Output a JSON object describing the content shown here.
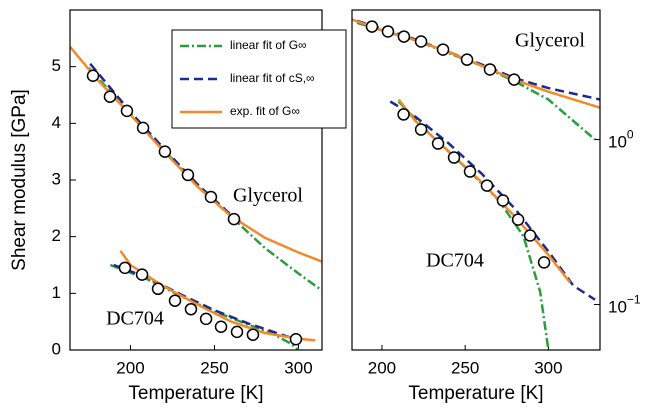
{
  "chart_data": [
    {
      "type": "line",
      "xlabel": "Temperature [K]",
      "ylabel": "Shear modulus [GPa]",
      "xlim": [
        164,
        314
      ],
      "xticks": [
        200,
        250,
        300
      ],
      "ylim": [
        0,
        6
      ],
      "yticks": [
        0,
        1,
        2,
        3,
        4,
        5
      ],
      "yaxis_side": "left",
      "annotations": [
        "Glycerol",
        "DC704"
      ],
      "series": [
        {
          "name": "linear fit of G∞",
          "color": "#2a9d3f",
          "style": "dashdot",
          "x": [
            175,
            200,
            220,
            240,
            260,
            280,
            300,
            314
          ],
          "values": [
            4.98,
            4.17,
            3.52,
            2.9,
            2.35,
            1.8,
            1.35,
            1.05
          ]
        },
        {
          "name": "linear fit of cS,∞",
          "color": "#1f2a8a",
          "style": "dashed",
          "x": [
            176,
            200,
            220,
            240,
            260,
            266
          ],
          "values": [
            5.05,
            4.2,
            3.55,
            2.92,
            2.38,
            2.25
          ]
        },
        {
          "name": "exp. fit of G∞",
          "color": "#f28a2b",
          "style": "solid",
          "x": [
            164,
            180,
            200,
            220,
            240,
            260,
            280,
            300,
            314
          ],
          "values": [
            5.35,
            4.78,
            4.15,
            3.5,
            2.88,
            2.36,
            1.98,
            1.72,
            1.56
          ]
        },
        {
          "color": "#2a9d3f",
          "style": "dashdot",
          "x": [
            188,
            210,
            230,
            250,
            270,
            285,
            295,
            300
          ],
          "values": [
            1.5,
            1.25,
            0.95,
            0.68,
            0.45,
            0.28,
            0.12,
            0.0
          ]
        },
        {
          "color": "#1f2a8a",
          "style": "dashed",
          "x": [
            190,
            210,
            230,
            250,
            270,
            290,
            300
          ],
          "values": [
            1.5,
            1.28,
            0.98,
            0.7,
            0.47,
            0.27,
            0.18
          ]
        },
        {
          "color": "#f28a2b",
          "style": "solid",
          "x": [
            194,
            200,
            220,
            240,
            260,
            280,
            300,
            310
          ],
          "values": [
            1.75,
            1.5,
            1.12,
            0.8,
            0.5,
            0.3,
            0.2,
            0.17
          ]
        },
        {
          "color": "#000000",
          "style": "markers",
          "x": [
            177.7,
            187.8,
            197.9,
            207.5,
            220.5,
            234.2,
            247.9,
            261.6
          ],
          "values": [
            4.84,
            4.47,
            4.22,
            3.92,
            3.5,
            3.09,
            2.7,
            2.31
          ]
        },
        {
          "color": "#000000",
          "style": "markers",
          "x": [
            196.7,
            206.9,
            216.4,
            226.5,
            236,
            245,
            253.9,
            263.4,
            272.9,
            298.5
          ],
          "values": [
            1.45,
            1.33,
            1.08,
            0.87,
            0.72,
            0.55,
            0.41,
            0.32,
            0.27,
            0.19
          ]
        }
      ]
    },
    {
      "type": "line",
      "xlabel": "Temperature [K]",
      "log_y": true,
      "xlim": [
        182,
        331
      ],
      "xticks": [
        200,
        250,
        300
      ],
      "ylim": [
        0.053,
        6.1
      ],
      "yticks": [
        {
          "value": 0.1,
          "label": "10^−1"
        },
        {
          "value": 1,
          "label": "10^0"
        }
      ],
      "yaxis_side": "right",
      "annotations": [
        "Glycerol",
        "DC704"
      ],
      "series": [
        {
          "color": "#2a9d3f",
          "style": "dashdot",
          "x": [
            185,
            220,
            260,
            280,
            300,
            328
          ],
          "values": [
            5.1,
            4.0,
            2.8,
            2.25,
            1.75,
            1.0
          ]
        },
        {
          "color": "#1f2a8a",
          "style": "dashed",
          "x": [
            185,
            220,
            260,
            280,
            300,
            331
          ],
          "values": [
            5.25,
            4.05,
            2.85,
            2.35,
            2.05,
            1.75
          ]
        },
        {
          "color": "#f28a2b",
          "style": "solid",
          "x": [
            182,
            200,
            220,
            240,
            260,
            280,
            300,
            331
          ],
          "values": [
            5.34,
            4.6,
            4.0,
            3.4,
            2.8,
            2.3,
            1.95,
            1.56
          ]
        },
        {
          "color": "#2a9d3f",
          "style": "dashdot",
          "x": [
            210,
            230,
            250,
            270,
            285,
            295,
            300
          ],
          "values": [
            1.7,
            1.05,
            0.68,
            0.43,
            0.26,
            0.12,
            0.053
          ]
        },
        {
          "color": "#1f2a8a",
          "style": "dashed",
          "x": [
            205,
            220,
            240,
            260,
            280,
            300,
            315,
            328
          ],
          "values": [
            1.7,
            1.38,
            0.95,
            0.62,
            0.38,
            0.21,
            0.13,
            0.107
          ]
        },
        {
          "color": "#f28a2b",
          "style": "solid",
          "x": [
            210,
            220,
            240,
            260,
            280,
            300,
            313
          ],
          "values": [
            1.75,
            1.3,
            0.85,
            0.55,
            0.34,
            0.2,
            0.136
          ]
        },
        {
          "color": "#000000",
          "style": "markers",
          "x": [
            194,
            203.6,
            213.2,
            223.5,
            236.7,
            251.1,
            264.9,
            279.4
          ],
          "values": [
            4.84,
            4.52,
            4.21,
            3.93,
            3.51,
            3.05,
            2.66,
            2.31
          ]
        },
        {
          "color": "#000000",
          "style": "markers",
          "x": [
            213,
            223.5,
            233.7,
            243.3,
            252.9,
            263.1,
            272.7,
            281.8,
            289,
            297.4
          ],
          "values": [
            1.42,
            1.15,
            0.946,
            0.778,
            0.64,
            0.526,
            0.427,
            0.327,
            0.262,
            0.18
          ]
        }
      ]
    }
  ]
}
